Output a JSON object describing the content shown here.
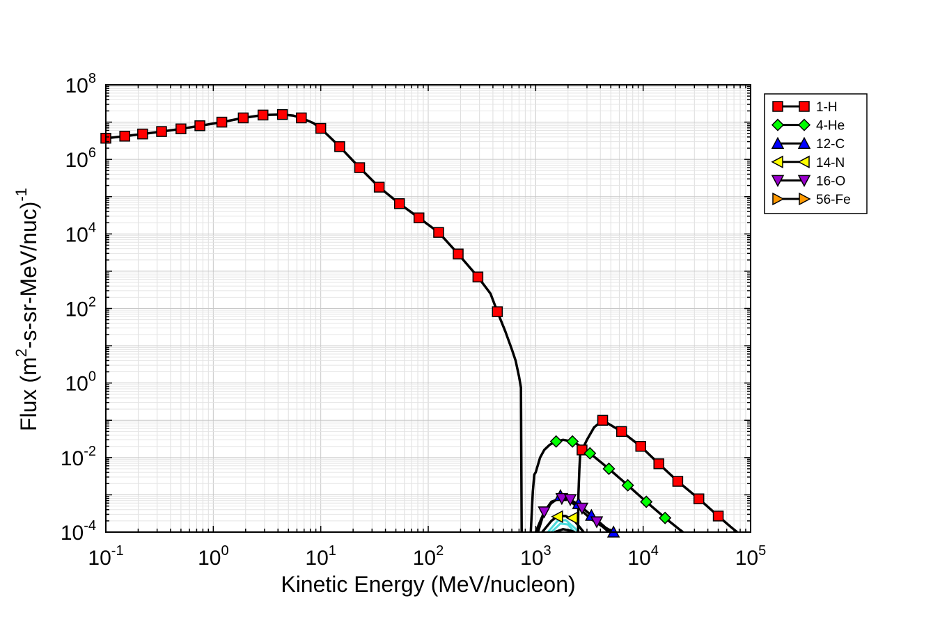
{
  "chart_data": {
    "type": "line",
    "x_scale": "log",
    "y_scale": "log",
    "xlim": [
      0.1,
      100000
    ],
    "ylim": [
      0.0001,
      100000000
    ],
    "grid": true,
    "legend_position": "right, outside plot",
    "xlabel": "Kinetic Energy (MeV/nucleon)",
    "ylabel_main": "Flux (m",
    "ylabel_sup1": "2",
    "ylabel_mid": "-s-sr-MeV/nuc)",
    "ylabel_sup2": "-1",
    "x_ticks": [
      {
        "base": "10",
        "exp": "-1",
        "value": 0.1
      },
      {
        "base": "10",
        "exp": "0",
        "value": 1
      },
      {
        "base": "10",
        "exp": "1",
        "value": 10
      },
      {
        "base": "10",
        "exp": "2",
        "value": 100
      },
      {
        "base": "10",
        "exp": "3",
        "value": 1000
      },
      {
        "base": "10",
        "exp": "4",
        "value": 10000
      },
      {
        "base": "10",
        "exp": "5",
        "value": 100000
      }
    ],
    "y_ticks": [
      {
        "base": "10",
        "exp": "-4",
        "value": 0.0001
      },
      {
        "base": "10",
        "exp": "-2",
        "value": 0.01
      },
      {
        "base": "10",
        "exp": "0",
        "value": 1
      },
      {
        "base": "10",
        "exp": "2",
        "value": 100
      },
      {
        "base": "10",
        "exp": "4",
        "value": 10000
      },
      {
        "base": "10",
        "exp": "6",
        "value": 1000000
      },
      {
        "base": "10",
        "exp": "8",
        "value": 100000000
      }
    ],
    "series": [
      {
        "name": "1-H",
        "marker": "square",
        "color": "#ff0000",
        "line": [
          [
            0.1,
            3700000.0
          ],
          [
            0.15,
            4200000.0
          ],
          [
            0.22,
            4800000.0
          ],
          [
            0.33,
            5600000.0
          ],
          [
            0.5,
            6600000.0
          ],
          [
            0.75,
            8000000.0
          ],
          [
            1.2,
            10000000.0
          ],
          [
            1.9,
            13000000.0
          ],
          [
            2.9,
            15500000.0
          ],
          [
            4.4,
            16000000.0
          ],
          [
            5.5,
            15000000.0
          ],
          [
            6.6,
            13000000.0
          ],
          [
            8.5,
            9500000.0
          ],
          [
            10,
            6800000.0
          ],
          [
            15,
            2200000.0
          ],
          [
            23,
            600000.0
          ],
          [
            35,
            180000.0
          ],
          [
            54,
            65000.0
          ],
          [
            82,
            27000.0
          ],
          [
            125,
            11000.0
          ],
          [
            190,
            2900.0
          ],
          [
            290,
            700
          ],
          [
            380,
            250
          ],
          [
            440,
            82
          ],
          [
            520,
            25
          ],
          [
            600,
            8
          ],
          [
            650,
            4
          ],
          [
            700,
            1.5
          ],
          [
            730,
            0.75
          ],
          [
            740,
            0.0001
          ]
        ],
        "markers": [
          [
            0.1,
            3700000.0
          ],
          [
            0.15,
            4200000.0
          ],
          [
            0.22,
            4800000.0
          ],
          [
            0.33,
            5600000.0
          ],
          [
            0.5,
            6600000.0
          ],
          [
            0.75,
            8000000.0
          ],
          [
            1.2,
            10000000.0
          ],
          [
            1.9,
            13000000.0
          ],
          [
            2.9,
            15500000.0
          ],
          [
            4.4,
            16000000.0
          ],
          [
            6.6,
            13000000.0
          ],
          [
            10,
            6800000.0
          ],
          [
            15,
            2200000.0
          ],
          [
            23,
            600000.0
          ],
          [
            35,
            180000.0
          ],
          [
            54,
            65000.0
          ],
          [
            82,
            27000.0
          ],
          [
            125,
            11000.0
          ],
          [
            190,
            2900.0
          ],
          [
            290,
            700
          ],
          [
            440,
            82
          ]
        ],
        "line2": [
          [
            2480,
            0.0001
          ],
          [
            2500,
            0.001
          ],
          [
            2550,
            0.005
          ],
          [
            2600,
            0.014
          ],
          [
            2700,
            0.016
          ],
          [
            3000,
            0.03
          ],
          [
            3500,
            0.065
          ],
          [
            4200,
            0.1
          ],
          [
            6300,
            0.05
          ],
          [
            9500,
            0.02
          ],
          [
            14000,
            0.0068
          ],
          [
            21000,
            0.0023
          ],
          [
            33000,
            0.00078
          ],
          [
            50000,
            0.00027
          ],
          [
            65000,
            0.00014
          ],
          [
            75000,
            0.0001
          ]
        ],
        "markers2": [
          [
            2700,
            0.016
          ],
          [
            4200,
            0.1
          ],
          [
            6300,
            0.05
          ],
          [
            9500,
            0.02
          ],
          [
            14000,
            0.0068
          ],
          [
            21000,
            0.0023
          ],
          [
            33000,
            0.00078
          ],
          [
            50000,
            0.00027
          ]
        ]
      },
      {
        "name": "4-He",
        "marker": "diamond",
        "color": "#00ff00",
        "line": [
          [
            900,
            0.0001
          ],
          [
            940,
            0.0012
          ],
          [
            970,
            0.0035
          ],
          [
            1000,
            0.004
          ],
          [
            1100,
            0.01
          ],
          [
            1200,
            0.016
          ],
          [
            1350,
            0.022
          ],
          [
            1550,
            0.027
          ],
          [
            1800,
            0.03
          ],
          [
            2200,
            0.027
          ],
          [
            2800,
            0.018
          ],
          [
            3200,
            0.013
          ],
          [
            4800,
            0.005
          ],
          [
            7200,
            0.0018
          ],
          [
            10700,
            0.00065
          ],
          [
            16000,
            0.00024
          ],
          [
            22000,
            0.000115
          ],
          [
            23500,
            0.0001
          ]
        ],
        "markers": [
          [
            1550,
            0.027
          ],
          [
            2200,
            0.027
          ],
          [
            3200,
            0.013
          ],
          [
            4800,
            0.005
          ],
          [
            7200,
            0.0018
          ],
          [
            10700,
            0.00065
          ],
          [
            16000,
            0.00024
          ]
        ]
      },
      {
        "name": "12-C",
        "marker": "triangle-up",
        "color": "#0000ff",
        "line": [
          [
            1000,
            0.0001
          ],
          [
            1200,
            0.00035
          ],
          [
            1400,
            0.0006
          ],
          [
            1700,
            0.0009
          ],
          [
            2000,
            0.0008
          ],
          [
            2500,
            0.00055
          ],
          [
            3300,
            0.00028
          ],
          [
            4500,
            0.00013
          ],
          [
            5300,
            0.0001
          ]
        ],
        "markers": [
          [
            1700,
            0.00095
          ],
          [
            2500,
            0.00058
          ],
          [
            3300,
            0.00028
          ],
          [
            5300,
            0.0001
          ]
        ]
      },
      {
        "name": "14-N",
        "marker": "triangle-left",
        "color": "#ffff00",
        "line": [
          [
            1150,
            0.0001
          ],
          [
            1400,
            0.0002
          ],
          [
            1600,
            0.00027
          ],
          [
            1900,
            0.00027
          ],
          [
            2300,
            0.0002
          ],
          [
            2800,
            0.0001
          ]
        ],
        "markers": [
          [
            1600,
            0.00026
          ],
          [
            2200,
            0.00024
          ]
        ]
      },
      {
        "name": "16-O",
        "marker": "triangle-down",
        "color": "#9900cc",
        "line": [
          [
            1050,
            0.0001
          ],
          [
            1200,
            0.00035
          ],
          [
            1400,
            0.00065
          ],
          [
            1700,
            0.0008
          ],
          [
            2000,
            0.00075
          ],
          [
            2500,
            0.00045
          ],
          [
            3300,
            0.00022
          ],
          [
            4200,
            0.00014
          ],
          [
            4800,
            0.0001
          ]
        ],
        "markers": [
          [
            1200,
            0.00035
          ],
          [
            1750,
            0.0008
          ],
          [
            2100,
            0.00075
          ],
          [
            2700,
            0.00044
          ],
          [
            3700,
            0.00019
          ]
        ]
      },
      {
        "name": "56-Fe",
        "marker": "triangle-right",
        "color": "#ff9900",
        "line": [
          [
            1500,
            0.0001
          ],
          [
            1800,
            0.00012
          ],
          [
            2100,
            0.00011
          ],
          [
            2300,
            0.0001
          ]
        ],
        "markers": []
      }
    ],
    "extra_curves_color": "#00cccc"
  }
}
